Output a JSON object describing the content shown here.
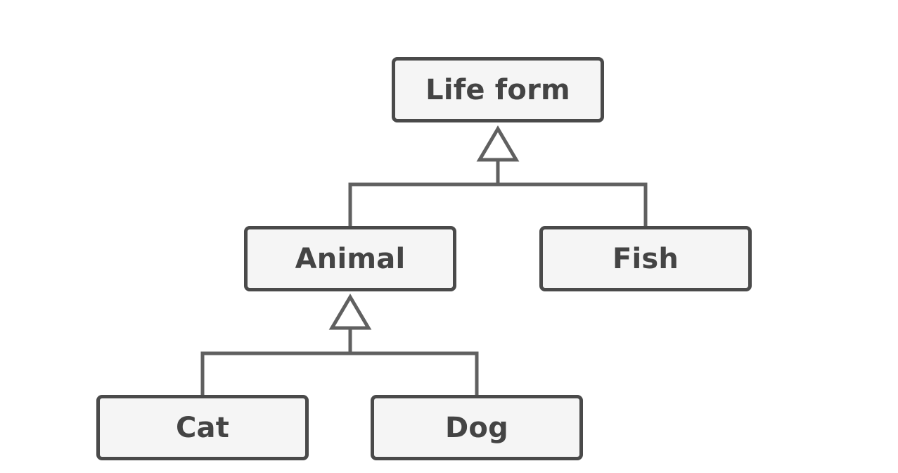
{
  "diagram": {
    "type": "class-inheritance-hierarchy",
    "colors": {
      "box_fill": "#f5f5f5",
      "box_border": "#4a4a4a",
      "line": "#606060",
      "text": "#444444",
      "background": "#ffffff"
    },
    "nodes": [
      {
        "id": "life-form",
        "label": "Life form"
      },
      {
        "id": "animal",
        "label": "Animal"
      },
      {
        "id": "fish",
        "label": "Fish"
      },
      {
        "id": "cat",
        "label": "Cat"
      },
      {
        "id": "dog",
        "label": "Dog"
      }
    ],
    "edges": [
      {
        "from": "animal",
        "to": "life-form",
        "kind": "inheritance"
      },
      {
        "from": "fish",
        "to": "life-form",
        "kind": "inheritance"
      },
      {
        "from": "cat",
        "to": "animal",
        "kind": "inheritance"
      },
      {
        "from": "dog",
        "to": "animal",
        "kind": "inheritance"
      }
    ]
  }
}
